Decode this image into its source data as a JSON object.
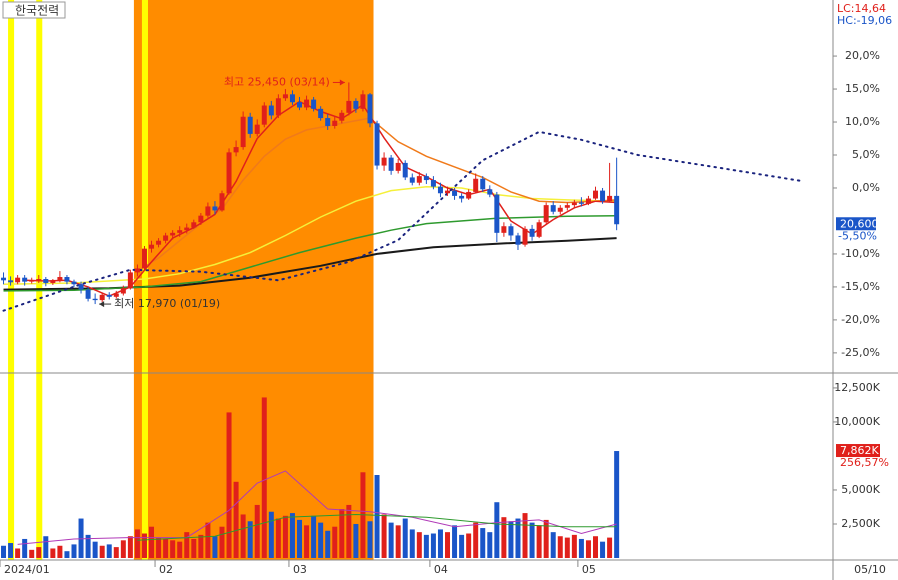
{
  "chart_data": [
    {
      "type": "candlestick",
      "title": "한국전력",
      "up_color": "#e0201b",
      "down_color": "#1a55c8",
      "xlim": [
        0,
        118.2
      ],
      "xticks": [
        {
          "value": 0,
          "label": "2024/01"
        },
        {
          "value": 22,
          "label": "02"
        },
        {
          "value": 41,
          "label": "03"
        },
        {
          "value": 61,
          "label": "04"
        },
        {
          "value": 82,
          "label": "05"
        }
      ],
      "x_end_label": "05/10",
      "ylim": [
        -27.9,
        28.5
      ],
      "yticks": [
        {
          "value": 20,
          "label": "20,0%"
        },
        {
          "value": 15,
          "label": "15,0%"
        },
        {
          "value": 10,
          "label": "10,0%"
        },
        {
          "value": 5,
          "label": "5,0%"
        },
        {
          "value": 0,
          "label": "0,0%"
        },
        {
          "value": -10,
          "label": "-10,0%"
        },
        {
          "value": -15,
          "label": "-15,0%"
        },
        {
          "value": -20,
          "label": "-20,0%"
        },
        {
          "value": -25,
          "label": "-25,0%"
        }
      ],
      "bands": [
        {
          "from": 19,
          "to": 52,
          "color": "#ff8c00"
        }
      ],
      "signals": {
        "color": "#ffff00",
        "x": [
          1,
          5,
          20
        ]
      },
      "lc_label": "LC:14,64",
      "hc_label": "HC:-19,06",
      "last": {
        "value": -5.5,
        "label": "20,600",
        "pct_label": "-5,50%"
      },
      "annotations": [
        {
          "text": "최고 25,450 (03/14)",
          "x": 49,
          "y": 16.0,
          "side": "left",
          "color": "#e0201b"
        },
        {
          "text": "최저 17,970 (01/19)",
          "x": 13,
          "y": -17.6,
          "side": "right",
          "color": "#333333"
        }
      ],
      "candles": [
        [
          -13.6,
          -12.8,
          -14.6,
          -14.0
        ],
        [
          -14.0,
          -13.4,
          -14.8,
          -14.3
        ],
        [
          -14.3,
          -13.2,
          -14.6,
          -13.6
        ],
        [
          -13.6,
          -13.2,
          -14.8,
          -14.2
        ],
        [
          -14.2,
          -13.6,
          -14.5,
          -14.0
        ],
        [
          -14.0,
          -13.2,
          -14.4,
          -13.8
        ],
        [
          -13.8,
          -13.5,
          -14.9,
          -14.4
        ],
        [
          -14.4,
          -13.8,
          -14.7,
          -14.1
        ],
        [
          -14.1,
          -12.6,
          -14.3,
          -13.5
        ],
        [
          -13.5,
          -13.2,
          -14.6,
          -14.2
        ],
        [
          -14.2,
          -13.9,
          -15.0,
          -14.6
        ],
        [
          -14.6,
          -14.2,
          -16.0,
          -15.4
        ],
        [
          -15.4,
          -15.0,
          -17.2,
          -16.8
        ],
        [
          -16.8,
          -16.0,
          -17.6,
          -17.0
        ],
        [
          -17.0,
          -16.0,
          -17.3,
          -16.2
        ],
        [
          -16.2,
          -15.8,
          -16.9,
          -16.5
        ],
        [
          -16.5,
          -15.6,
          -16.8,
          -16.0
        ],
        [
          -16.0,
          -14.8,
          -16.3,
          -15.2
        ],
        [
          -15.2,
          -12.4,
          -15.4,
          -12.8
        ],
        [
          -12.8,
          -11.6,
          -13.4,
          -12.2
        ],
        [
          -12.2,
          -8.8,
          -12.4,
          -9.2
        ],
        [
          -9.2,
          -8.0,
          -9.8,
          -8.6
        ],
        [
          -8.6,
          -7.6,
          -9.0,
          -8.0
        ],
        [
          -8.0,
          -6.8,
          -8.4,
          -7.2
        ],
        [
          -7.2,
          -6.4,
          -7.8,
          -6.8
        ],
        [
          -6.8,
          -5.8,
          -7.4,
          -6.4
        ],
        [
          -6.4,
          -5.4,
          -6.9,
          -6.0
        ],
        [
          -6.0,
          -4.8,
          -6.2,
          -5.2
        ],
        [
          -5.2,
          -3.8,
          -5.6,
          -4.2
        ],
        [
          -4.2,
          -2.2,
          -4.5,
          -2.8
        ],
        [
          -2.8,
          -2.0,
          -4.0,
          -3.4
        ],
        [
          -3.4,
          -0.4,
          -3.6,
          -0.8
        ],
        [
          -0.8,
          6.0,
          -1.0,
          5.4
        ],
        [
          5.4,
          7.2,
          4.8,
          6.2
        ],
        [
          6.2,
          11.6,
          5.8,
          10.8
        ],
        [
          10.8,
          11.4,
          7.6,
          8.2
        ],
        [
          8.2,
          10.4,
          7.8,
          9.6
        ],
        [
          9.6,
          13.0,
          9.2,
          12.5
        ],
        [
          12.5,
          13.2,
          10.4,
          11.0
        ],
        [
          11.0,
          14.2,
          10.6,
          13.6
        ],
        [
          13.6,
          15.0,
          13.2,
          14.2
        ],
        [
          14.2,
          14.8,
          12.6,
          13.0
        ],
        [
          13.0,
          13.8,
          11.8,
          12.2
        ],
        [
          12.2,
          14.0,
          11.8,
          13.4
        ],
        [
          13.4,
          13.8,
          11.6,
          12.0
        ],
        [
          12.0,
          12.4,
          10.2,
          10.6
        ],
        [
          10.6,
          11.2,
          8.8,
          9.4
        ],
        [
          9.4,
          10.8,
          9.0,
          10.2
        ],
        [
          10.2,
          11.8,
          9.8,
          11.4
        ],
        [
          11.4,
          16.0,
          11.0,
          13.2
        ],
        [
          13.2,
          13.6,
          11.4,
          12.0
        ],
        [
          12.0,
          14.8,
          11.6,
          14.2
        ],
        [
          14.2,
          14.4,
          9.2,
          9.8
        ],
        [
          9.8,
          10.2,
          2.8,
          3.4
        ],
        [
          3.4,
          5.4,
          2.6,
          4.6
        ],
        [
          4.6,
          5.0,
          2.0,
          2.6
        ],
        [
          2.6,
          4.4,
          2.2,
          3.8
        ],
        [
          3.8,
          4.2,
          1.2,
          1.6
        ],
        [
          1.6,
          2.2,
          0.4,
          0.8
        ],
        [
          0.8,
          2.4,
          0.4,
          1.8
        ],
        [
          1.8,
          2.2,
          0.6,
          1.2
        ],
        [
          1.2,
          1.8,
          -0.2,
          0.2
        ],
        [
          0.2,
          0.8,
          -1.4,
          -0.8
        ],
        [
          -0.8,
          0.2,
          -1.2,
          -0.4
        ],
        [
          -0.4,
          0.0,
          -1.8,
          -1.2
        ],
        [
          -1.2,
          -0.8,
          -2.2,
          -1.6
        ],
        [
          -1.6,
          -0.2,
          -1.8,
          -0.6
        ],
        [
          -0.6,
          2.2,
          -0.8,
          1.4
        ],
        [
          1.4,
          1.8,
          -0.6,
          -0.2
        ],
        [
          -0.2,
          0.4,
          -1.4,
          -1.0
        ],
        [
          -1.0,
          -0.6,
          -8.2,
          -6.8
        ],
        [
          -6.8,
          -5.2,
          -7.4,
          -5.8
        ],
        [
          -5.8,
          -5.4,
          -8.0,
          -7.2
        ],
        [
          -7.2,
          -6.8,
          -9.4,
          -8.6
        ],
        [
          -8.6,
          -5.8,
          -8.9,
          -6.2
        ],
        [
          -6.2,
          -5.6,
          -8.0,
          -7.4
        ],
        [
          -7.4,
          -4.8,
          -7.6,
          -5.2
        ],
        [
          -5.2,
          -2.2,
          -5.4,
          -2.6
        ],
        [
          -2.6,
          -2.0,
          -4.0,
          -3.6
        ],
        [
          -3.6,
          -2.6,
          -4.0,
          -3.0
        ],
        [
          -3.0,
          -2.2,
          -3.4,
          -2.6
        ],
        [
          -2.6,
          -1.8,
          -3.0,
          -2.2
        ],
        [
          -2.2,
          -1.4,
          -2.8,
          -2.4
        ],
        [
          -2.4,
          -1.2,
          -2.6,
          -1.6
        ],
        [
          -1.6,
          0.2,
          -1.8,
          -0.4
        ],
        [
          -0.4,
          0.0,
          -2.4,
          -2.0
        ],
        [
          -2.0,
          3.8,
          -2.2,
          -1.2
        ],
        [
          -1.2,
          4.6,
          -6.4,
          -5.5
        ]
      ],
      "lines": [
        {
          "color": "#1a1a1a",
          "width": 2,
          "x": [
            0,
            15,
            25,
            35,
            45,
            53,
            61,
            71,
            80,
            87
          ],
          "values": [
            -15.4,
            -15.2,
            -14.8,
            -13.6,
            -11.8,
            -10.0,
            -9.0,
            -8.4,
            -8.0,
            -7.6
          ]
        },
        {
          "color": "#2e9a2e",
          "width": 1.5,
          "x": [
            0,
            10,
            20,
            28,
            35,
            42,
            50,
            55,
            60,
            70,
            80,
            87
          ],
          "values": [
            -15.6,
            -15.5,
            -15.0,
            -14.2,
            -12.0,
            -9.8,
            -7.6,
            -6.4,
            -5.4,
            -4.6,
            -4.3,
            -4.2
          ]
        },
        {
          "color": "#f5f03a",
          "width": 1.5,
          "x": [
            0,
            10,
            20,
            25,
            30,
            35,
            40,
            45,
            50,
            55,
            60,
            65,
            70,
            75,
            80,
            87
          ],
          "values": [
            -14.6,
            -14.4,
            -13.8,
            -13.0,
            -11.6,
            -9.8,
            -7.2,
            -4.4,
            -2.0,
            -0.4,
            0.2,
            0.0,
            -1.0,
            -1.6,
            -1.8,
            -2.0
          ]
        },
        {
          "color": "#f07a1a",
          "width": 1.5,
          "x": [
            19,
            22,
            25,
            28,
            31,
            34,
            37,
            40,
            43,
            46,
            49,
            52,
            56,
            60,
            64,
            68,
            72,
            76,
            80,
            84,
            87
          ],
          "values": [
            -12.6,
            -10.6,
            -8.0,
            -5.4,
            -3.2,
            1.2,
            4.8,
            7.4,
            8.8,
            9.4,
            10.0,
            10.6,
            7.0,
            4.8,
            3.2,
            1.6,
            -0.6,
            -2.0,
            -2.2,
            -2.0,
            -1.8
          ]
        },
        {
          "color": "#e0201b",
          "width": 1.5,
          "x": [
            3,
            6,
            9,
            12,
            15,
            18,
            21,
            24,
            27,
            30,
            33,
            36,
            39,
            42,
            45,
            48,
            51,
            54,
            57,
            60,
            63,
            66,
            69,
            72,
            75,
            78,
            81,
            84,
            87
          ],
          "values": [
            -14.0,
            -14.1,
            -14.0,
            -15.0,
            -16.4,
            -15.0,
            -11.2,
            -7.6,
            -6.0,
            -4.0,
            1.0,
            7.5,
            11.0,
            13.1,
            11.6,
            10.5,
            12.6,
            7.6,
            3.2,
            1.7,
            0.0,
            -1.0,
            -0.2,
            -5.0,
            -7.0,
            -4.8,
            -3.0,
            -2.0,
            -2.2
          ]
        },
        {
          "color": "#1a237e",
          "width": 2,
          "style": "dotted",
          "x": [
            0,
            11,
            18,
            28,
            39,
            49,
            56,
            62,
            68,
            76,
            82,
            90,
            99,
            113
          ],
          "values": [
            -18.6,
            -14.6,
            -12.4,
            -12.7,
            -14.0,
            -11.2,
            -7.9,
            -1.8,
            4.2,
            8.5,
            7.3,
            5.0,
            3.5,
            1.1
          ]
        }
      ]
    },
    {
      "type": "bar",
      "xlim": [
        0,
        118.2
      ],
      "ylim": [
        0,
        13450
      ],
      "yticks": [
        {
          "value": 12500,
          "label": "12,500K"
        },
        {
          "value": 10000,
          "label": "10,000K"
        },
        {
          "value": 5000,
          "label": "5,000K"
        },
        {
          "value": 2500,
          "label": "2,500K"
        }
      ],
      "last": {
        "value": 7862,
        "label": "7,862K",
        "pct_label": "256,57%"
      },
      "values": [
        900,
        1100,
        700,
        1400,
        600,
        800,
        1600,
        700,
        900,
        500,
        1000,
        2900,
        1700,
        1200,
        900,
        1000,
        800,
        1300,
        1600,
        2100,
        1800,
        2300,
        1500,
        1400,
        1300,
        1200,
        1900,
        1400,
        1700,
        2600,
        1600,
        2300,
        10700,
        5600,
        3200,
        2700,
        3900,
        11800,
        3400,
        2900,
        3100,
        3300,
        2800,
        2400,
        3100,
        2600,
        2000,
        2300,
        3600,
        3900,
        2500,
        6300,
        2700,
        6100,
        3200,
        2600,
        2400,
        2900,
        2100,
        1900,
        1700,
        1800,
        2100,
        1900,
        2400,
        1700,
        1800,
        2600,
        2200,
        1900,
        4100,
        3000,
        2700,
        2900,
        3300,
        2600,
        2400,
        2800,
        1900,
        1600,
        1500,
        1700,
        1400,
        1300,
        1600,
        1200,
        1500,
        7862
      ],
      "lines": [
        {
          "color": "#b03ab8",
          "width": 1,
          "x": [
            2,
            10,
            18,
            26,
            32,
            36,
            40,
            46,
            52,
            58,
            64,
            70,
            76,
            82,
            87
          ],
          "values": [
            1000,
            1400,
            1500,
            1500,
            3500,
            5500,
            6400,
            3600,
            3400,
            3000,
            2300,
            2600,
            2800,
            1800,
            2500
          ]
        },
        {
          "color": "#2e9a2e",
          "width": 1,
          "x": [
            19,
            30,
            40,
            50,
            60,
            70,
            80,
            87
          ],
          "values": [
            1300,
            1600,
            3000,
            3200,
            3000,
            2500,
            2300,
            2300
          ]
        }
      ]
    }
  ]
}
